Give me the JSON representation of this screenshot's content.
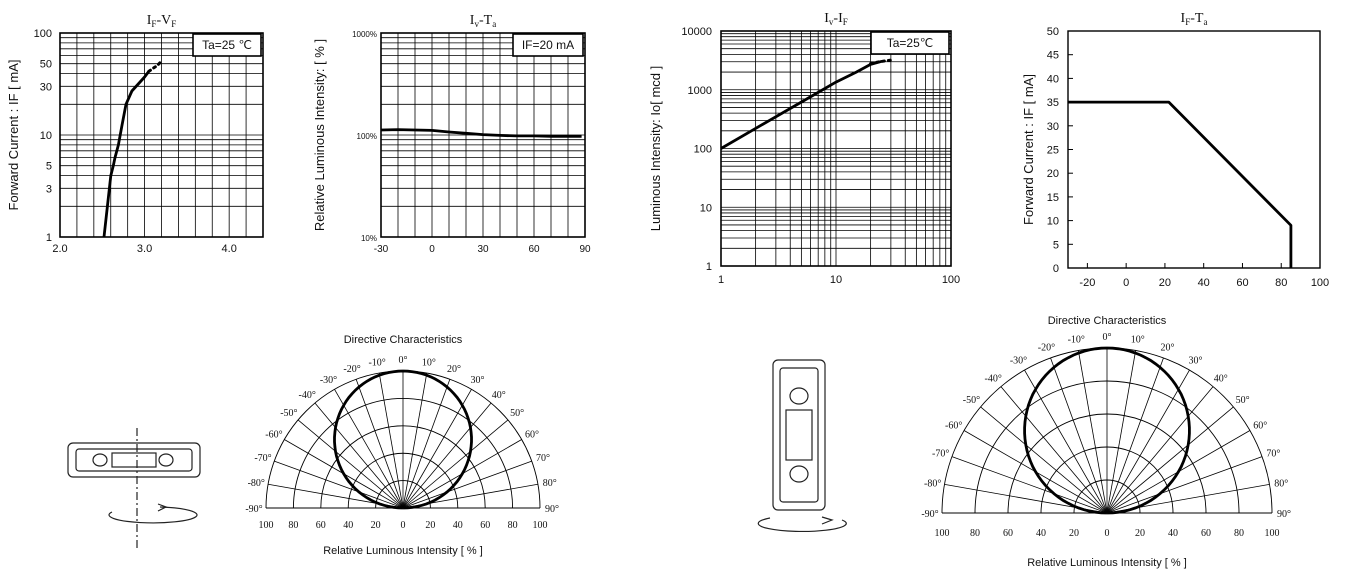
{
  "colors": {
    "line": "#000000",
    "grid": "#000000",
    "background": "#ffffff"
  },
  "chart_data": [
    {
      "id": "if_vf",
      "type": "line",
      "title_parts": [
        "I",
        "F",
        "-V",
        "F"
      ],
      "ylabel": "Forward Current : IF [ mA]",
      "xlabel": "",
      "xscale": "linear",
      "yscale": "log",
      "xlim": [
        2.0,
        4.4
      ],
      "ylim": [
        1,
        100
      ],
      "x_ticks": [
        "2.0",
        "3.0",
        "4.0"
      ],
      "y_ticks": [
        "1",
        "3",
        "5",
        "10",
        "30",
        "50",
        "100"
      ],
      "legend_box": "Ta=25 ℃",
      "grid": true,
      "series": [
        {
          "values": [
            [
              2.52,
              1
            ],
            [
              2.56,
              2
            ],
            [
              2.6,
              4
            ],
            [
              2.63,
              5
            ],
            [
              2.65,
              6
            ],
            [
              2.69,
              8
            ],
            [
              2.73,
              12
            ],
            [
              2.78,
              20
            ],
            [
              2.85,
              27
            ],
            [
              2.93,
              32
            ],
            [
              3.0,
              37
            ],
            [
              3.05,
              42
            ]
          ]
        },
        {
          "style": "dotted",
          "values": [
            [
              3.05,
              42
            ],
            [
              3.1,
              45
            ],
            [
              3.15,
              48
            ],
            [
              3.2,
              53
            ]
          ]
        }
      ]
    },
    {
      "id": "iv_ta",
      "type": "line",
      "title_parts": [
        "I",
        "v",
        "-T",
        "a"
      ],
      "ylabel": "Relative Luminous Intensity: [ % ]",
      "xlabel": "",
      "xscale": "linear",
      "yscale": "log",
      "xlim": [
        -30,
        90
      ],
      "ylim": [
        10,
        1000
      ],
      "x_ticks": [
        "-30",
        "0",
        "30",
        "60",
        "90"
      ],
      "y_ticks": [
        "10%",
        "100%",
        "1000%"
      ],
      "legend_box": "IF=20 mA",
      "grid": true,
      "series": [
        {
          "values": [
            [
              -30,
              112
            ],
            [
              -20,
              113
            ],
            [
              -10,
              112
            ],
            [
              0,
              111
            ],
            [
              10,
              107
            ],
            [
              20,
              104
            ],
            [
              30,
              101
            ],
            [
              40,
              99
            ],
            [
              50,
              98
            ],
            [
              60,
              98
            ],
            [
              70,
              97
            ],
            [
              80,
              97
            ],
            [
              88,
              97
            ]
          ]
        }
      ]
    },
    {
      "id": "iv_if",
      "type": "line",
      "title_parts": [
        "I",
        "v",
        "-I",
        "F"
      ],
      "ylabel": "Luminous Intensity: Io[ mcd ]",
      "xlabel": "",
      "xscale": "log",
      "yscale": "log",
      "xlim": [
        1,
        100
      ],
      "ylim": [
        1,
        10000
      ],
      "x_ticks": [
        "1",
        "10",
        "100"
      ],
      "y_ticks": [
        "1",
        "10",
        "100",
        "1000",
        "10000"
      ],
      "legend_box": "Ta=25℃",
      "grid": true,
      "series": [
        {
          "values": [
            [
              1,
              100
            ],
            [
              2,
              220
            ],
            [
              4,
              480
            ],
            [
              7,
              900
            ],
            [
              10,
              1350
            ],
            [
              15,
              2000
            ],
            [
              20,
              2700
            ],
            [
              25,
              3050
            ]
          ]
        },
        {
          "style": "dotted",
          "values": [
            [
              20,
              2800
            ],
            [
              24,
              3000
            ],
            [
              30,
              3200
            ]
          ]
        }
      ]
    },
    {
      "id": "if_ta",
      "type": "line",
      "title_parts": [
        "I",
        "F",
        "-T",
        "a"
      ],
      "ylabel": "Forward Current : IF [ mA]",
      "xlabel": "",
      "xscale": "linear",
      "yscale": "linear",
      "xlim": [
        -30,
        100
      ],
      "ylim": [
        0,
        50
      ],
      "x_ticks": [
        "-20",
        "0",
        "20",
        "40",
        "60",
        "80",
        "100"
      ],
      "y_ticks": [
        "0",
        "5",
        "10",
        "15",
        "20",
        "25",
        "30",
        "35",
        "40",
        "45",
        "50"
      ],
      "grid": false,
      "series": [
        {
          "values": [
            [
              -30,
              35
            ],
            [
              22,
              35
            ],
            [
              85,
              9
            ],
            [
              85,
              0
            ]
          ]
        }
      ]
    },
    {
      "id": "directive_1",
      "type": "polar",
      "title": "Directive Characteristics",
      "xlabel": "Relative Luminous Intensity [ % ]",
      "bottom_ticks": [
        "100",
        "80",
        "60",
        "40",
        "20",
        "0",
        "20",
        "40",
        "60",
        "80",
        "100"
      ],
      "angle_labels_left": [
        "-90°",
        "-80°",
        "-70°",
        "-60°",
        "-50°",
        "-40°",
        "-30°",
        "-20°",
        "-10°"
      ],
      "angle_labels_right": [
        "0°",
        "10°",
        "20°",
        "30°",
        "40°",
        "50°",
        "60°",
        "70°",
        "80°",
        "90°"
      ],
      "pattern": "cosine"
    },
    {
      "id": "directive_2",
      "type": "polar",
      "title": "Directive Characteristics",
      "xlabel": "Relative Luminous Intensity [ % ]",
      "bottom_ticks": [
        "100",
        "80",
        "60",
        "40",
        "20",
        "0",
        "20",
        "40",
        "60",
        "80",
        "100"
      ],
      "angle_labels_left": [
        "-90°",
        "-80°",
        "-70°",
        "-60°",
        "-50°",
        "-40°",
        "-30°",
        "-20°",
        "-10°"
      ],
      "angle_labels_right": [
        "0°",
        "10°",
        "20°",
        "30°",
        "40°",
        "50°",
        "60°",
        "70°",
        "80°",
        "90°"
      ],
      "pattern": "cosine"
    }
  ]
}
